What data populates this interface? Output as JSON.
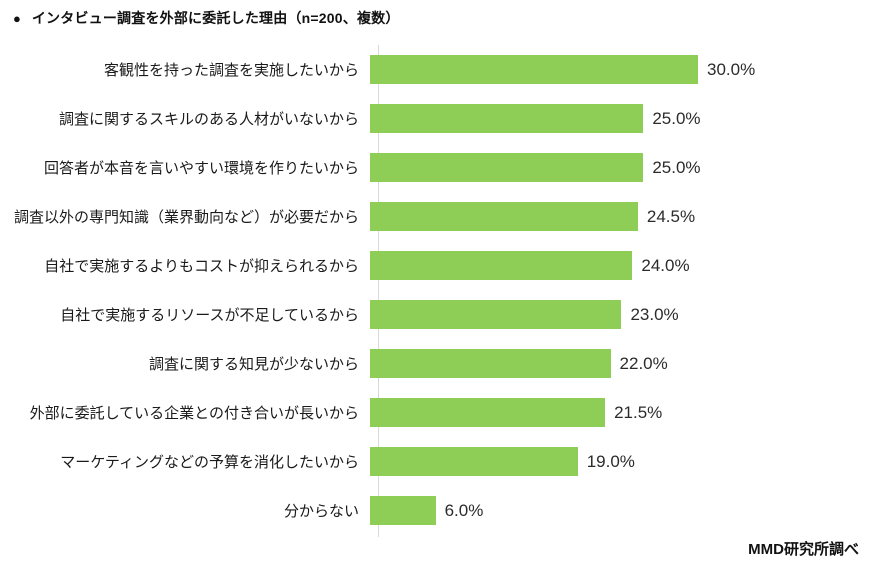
{
  "title": {
    "bullet": "●",
    "text": "インタビュー調査を外部に委託した理由（n=200、複数）"
  },
  "footer": {
    "credit": "MMD研究所調べ"
  },
  "colors": {
    "bar": "#8fce56",
    "axis_line": "#d9d9d9",
    "title_text": "#111111",
    "label_text": "#1a1a1a",
    "value_text": "#2b2b2b"
  },
  "chart_data": {
    "type": "bar",
    "orientation": "horizontal",
    "title": "インタビュー調査を外部に委託した理由（n=200、複数）",
    "sample_note": "n=200、複数",
    "unit": "%",
    "xlim": [
      0,
      30
    ],
    "grid": false,
    "legend": false,
    "categories": [
      "客観性を持った調査を実施したいから",
      "調査に関するスキルのある人材がいないから",
      "回答者が本音を言いやすい環境を作りたいから",
      "調査以外の専門知識（業界動向など）が必要だから",
      "自社で実施するよりもコストが抑えられるから",
      "自社で実施するリソースが不足しているから",
      "調査に関する知見が少ないから",
      "外部に委託している企業との付き合いが長いから",
      "マーケティングなどの予算を消化したいから",
      "分からない"
    ],
    "values": [
      30.0,
      25.0,
      25.0,
      24.5,
      24.0,
      23.0,
      22.0,
      21.5,
      19.0,
      6.0
    ],
    "value_labels": [
      "30.0%",
      "25.0%",
      "25.0%",
      "24.5%",
      "24.0%",
      "23.0%",
      "22.0%",
      "21.5%",
      "19.0%",
      "6.0%"
    ]
  }
}
